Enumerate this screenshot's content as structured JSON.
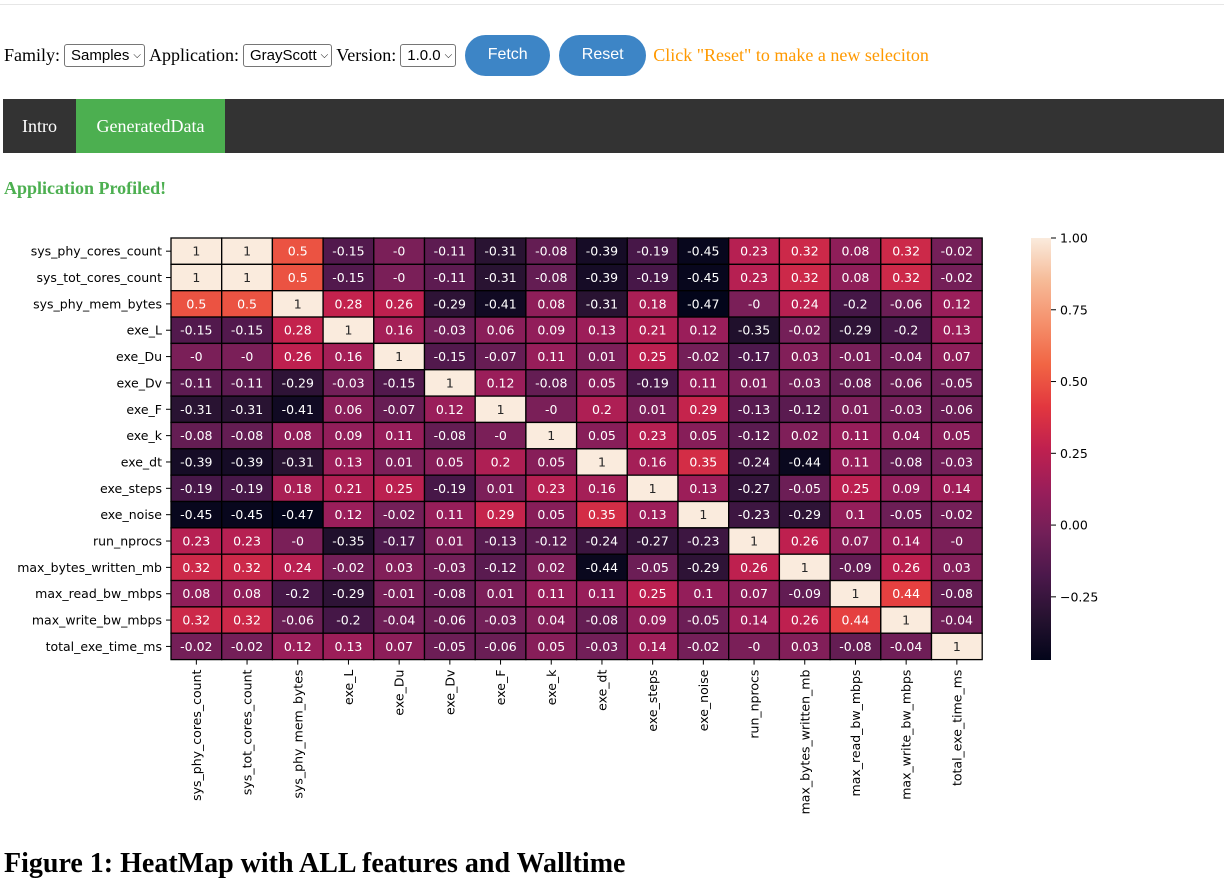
{
  "controls": {
    "family_label": "Family:",
    "family_value": "Samples",
    "application_label": "Application:",
    "application_value": "GrayScott",
    "version_label": "Version:",
    "version_value": "1.0.0",
    "fetch_label": "Fetch",
    "reset_label": "Reset",
    "hint": "Click \"Reset\" to make a new seleciton"
  },
  "tabs": [
    {
      "label": "Intro"
    },
    {
      "label": "GeneratedData"
    }
  ],
  "status": "Application Profiled!",
  "caption": "Figure 1: HeatMap with ALL features and Walltime",
  "colors": {
    "accent_blue": "#3d85c6",
    "active_tab_green": "#4caf50",
    "hint_orange": "#ff9900",
    "tabbar_bg": "#333333"
  },
  "chart_data": {
    "type": "heatmap",
    "colormap": "rocket",
    "colorbar": {
      "vmin": -0.47,
      "vmax": 1.0,
      "ticks": [
        1.0,
        0.75,
        0.5,
        0.25,
        0.0,
        -0.25
      ],
      "tick_labels": [
        "1.00",
        "0.75",
        "0.50",
        "0.25",
        "0.00",
        "−0.25"
      ]
    },
    "labels": [
      "sys_phy_cores_count",
      "sys_tot_cores_count",
      "sys_phy_mem_bytes",
      "exe_L",
      "exe_Du",
      "exe_Dv",
      "exe_F",
      "exe_k",
      "exe_dt",
      "exe_steps",
      "exe_noise",
      "run_nprocs",
      "max_bytes_written_mb",
      "max_read_bw_mbps",
      "max_write_bw_mbps",
      "total_exe_time_ms"
    ],
    "values": [
      [
        1,
        1,
        0.5,
        -0.15,
        0,
        -0.11,
        -0.31,
        -0.08,
        -0.39,
        -0.19,
        -0.45,
        0.23,
        0.32,
        0.08,
        0.32,
        -0.02
      ],
      [
        1,
        1,
        0.5,
        -0.15,
        0,
        -0.11,
        -0.31,
        -0.08,
        -0.39,
        -0.19,
        -0.45,
        0.23,
        0.32,
        0.08,
        0.32,
        -0.02
      ],
      [
        0.5,
        0.5,
        1,
        0.28,
        0.26,
        -0.29,
        -0.41,
        0.08,
        -0.31,
        0.18,
        -0.47,
        0,
        0.24,
        -0.2,
        -0.06,
        0.12
      ],
      [
        -0.15,
        -0.15,
        0.28,
        1,
        0.16,
        -0.03,
        0.06,
        0.09,
        0.13,
        0.21,
        0.12,
        -0.35,
        -0.02,
        -0.29,
        -0.2,
        0.13
      ],
      [
        0,
        0,
        0.26,
        0.16,
        1,
        -0.15,
        -0.07,
        0.11,
        0.01,
        0.25,
        -0.02,
        -0.17,
        0.03,
        -0.01,
        -0.04,
        0.07
      ],
      [
        -0.11,
        -0.11,
        -0.29,
        -0.03,
        -0.15,
        1,
        0.12,
        -0.08,
        0.05,
        -0.19,
        0.11,
        0.01,
        -0.03,
        -0.08,
        -0.06,
        -0.05
      ],
      [
        -0.31,
        -0.31,
        -0.41,
        0.06,
        -0.07,
        0.12,
        1,
        0,
        0.2,
        0.01,
        0.29,
        -0.13,
        -0.12,
        0.01,
        -0.03,
        -0.06
      ],
      [
        -0.08,
        -0.08,
        0.08,
        0.09,
        0.11,
        -0.08,
        0,
        1,
        0.05,
        0.23,
        0.05,
        -0.12,
        0.02,
        0.11,
        0.04,
        0.05
      ],
      [
        -0.39,
        -0.39,
        -0.31,
        0.13,
        0.01,
        0.05,
        0.2,
        0.05,
        1,
        0.16,
        0.35,
        -0.24,
        -0.44,
        0.11,
        -0.08,
        -0.03
      ],
      [
        -0.19,
        -0.19,
        0.18,
        0.21,
        0.25,
        -0.19,
        0.01,
        0.23,
        0.16,
        1,
        0.13,
        -0.27,
        -0.05,
        0.25,
        0.09,
        0.14
      ],
      [
        -0.45,
        -0.45,
        -0.47,
        0.12,
        -0.02,
        0.11,
        0.29,
        0.05,
        0.35,
        0.13,
        1,
        -0.23,
        -0.29,
        0.1,
        -0.05,
        -0.02
      ],
      [
        0.23,
        0.23,
        0,
        -0.35,
        -0.17,
        0.01,
        -0.13,
        -0.12,
        -0.24,
        -0.27,
        -0.23,
        1,
        0.26,
        0.07,
        0.14,
        0
      ],
      [
        0.32,
        0.32,
        0.24,
        -0.02,
        0.03,
        -0.03,
        -0.12,
        0.02,
        -0.44,
        -0.05,
        -0.29,
        0.26,
        1,
        -0.09,
        0.26,
        0.03
      ],
      [
        0.08,
        0.08,
        -0.2,
        -0.29,
        -0.01,
        -0.08,
        0.01,
        0.11,
        0.11,
        0.25,
        0.1,
        0.07,
        -0.09,
        1,
        0.44,
        -0.08
      ],
      [
        0.32,
        0.32,
        -0.06,
        -0.2,
        -0.04,
        -0.06,
        -0.03,
        0.04,
        -0.08,
        0.09,
        -0.05,
        0.14,
        0.26,
        0.44,
        1,
        -0.04
      ],
      [
        -0.02,
        -0.02,
        0.12,
        0.13,
        0.07,
        -0.05,
        -0.06,
        0.05,
        -0.03,
        0.14,
        -0.02,
        0,
        0.03,
        -0.08,
        -0.04,
        1
      ]
    ],
    "grid": true
  }
}
